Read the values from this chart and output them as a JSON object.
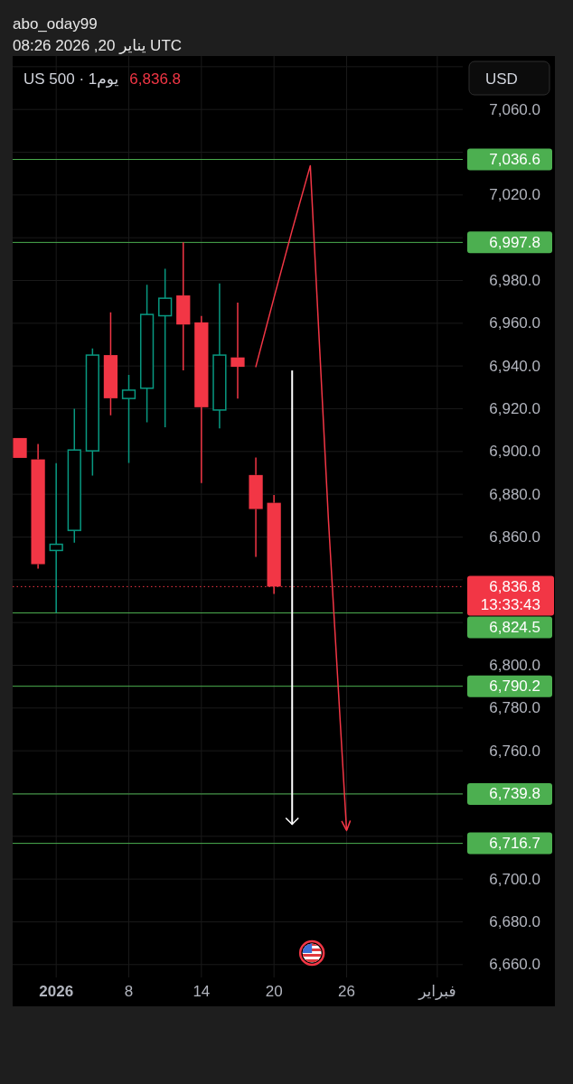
{
  "chart_data": {
    "type": "candlestick",
    "title": "US 500 · 1يوم",
    "subtitle": "abo_oday99",
    "annotations": [
      "6,836.8",
      "USD",
      "يناير 20, 2026 08:26 UTC"
    ],
    "categories": [
      null,
      null,
      "2026",
      null,
      null,
      null,
      "8",
      null,
      null,
      null,
      "14",
      null,
      null,
      null,
      "20",
      null,
      null,
      null,
      "26",
      null,
      null,
      null,
      null,
      "فبراير",
      null
    ],
    "ohlc": [
      [
        6906.3,
        6906.3,
        6897.0,
        6897.0
      ],
      [
        6896.3,
        6903.5,
        6845.2,
        6847.3
      ],
      [
        6853.7,
        6894.5,
        6824.5,
        6856.6
      ],
      [
        6863.1,
        6920.0,
        6857.3,
        6900.7
      ],
      [
        6900.3,
        6948.2,
        6888.7,
        6945.1
      ],
      [
        6945.1,
        6965.1,
        6916.9,
        6924.9
      ],
      [
        6924.8,
        6935.8,
        6894.6,
        6928.7
      ],
      [
        6929.6,
        6978.0,
        6913.7,
        6964.1
      ],
      [
        6963.5,
        6985.5,
        6911.3,
        6971.7
      ],
      [
        6973.0,
        6997.8,
        6938.0,
        6959.4
      ],
      [
        6960.4,
        6963.4,
        6885.2,
        6920.7
      ],
      [
        6919.4,
        6978.6,
        6910.8,
        6945.1
      ],
      [
        6944.0,
        6969.6,
        6924.8,
        6939.6
      ],
      [
        6889.0,
        6897.2,
        6850.7,
        6873.1
      ],
      [
        6876.0,
        6879.6,
        6833.4,
        6836.8
      ],
      null,
      null,
      null,
      null,
      null,
      null,
      null,
      null,
      null,
      null
    ],
    "colors": [
      "#f23645",
      "#f23645",
      "#089981",
      "#089981",
      "#089981",
      "#f23645",
      "#089981",
      "#089981",
      "#089981",
      "#f23645",
      "#f23645",
      "#089981",
      "#f23645",
      "#f23645",
      "#f23645",
      null,
      null,
      null,
      null,
      null,
      null,
      null,
      null,
      null,
      null
    ],
    "series": [
      {
        "type": "line",
        "color": "#f23645",
        "values": [
          null,
          null,
          null,
          null,
          null,
          null,
          null,
          null,
          null,
          null,
          null,
          null,
          null,
          6939.7,
          6971.9,
          7003.5,
          7033.7,
          6868.0,
          6722.7,
          null,
          null,
          null,
          null,
          null,
          null
        ]
      },
      {
        "type": "bar",
        "color": "#ffffff",
        "base": [
          null,
          null,
          null,
          null,
          null,
          null,
          null,
          null,
          null,
          null,
          null,
          null,
          null,
          null,
          null,
          6937.9,
          null,
          null,
          null,
          null,
          null,
          null,
          null,
          null,
          null
        ],
        "values": [
          null,
          null,
          null,
          null,
          null,
          null,
          null,
          null,
          null,
          null,
          null,
          null,
          null,
          null,
          null,
          -212.3,
          null,
          null,
          null,
          null,
          null,
          null,
          null,
          null,
          null
        ]
      }
    ],
    "ylim": [
      6654,
      7085
    ],
    "yticks": [
      {
        "value": 7080,
        "label": null
      },
      {
        "value": 7060,
        "label": "7,060.0"
      },
      {
        "value": 7040,
        "label": null
      },
      {
        "value": 7020,
        "label": "7,020.0"
      },
      {
        "value": 7000,
        "label": null
      },
      {
        "value": 6980,
        "label": "6,980.0"
      },
      {
        "value": 6960,
        "label": "6,960.0"
      },
      {
        "value": 6940,
        "label": "6,940.0"
      },
      {
        "value": 6920,
        "label": "6,920.0"
      },
      {
        "value": 6900,
        "label": "6,900.0"
      },
      {
        "value": 6880,
        "label": "6,880.0"
      },
      {
        "value": 6860,
        "label": "6,860.0"
      },
      {
        "value": 6840,
        "label": null
      },
      {
        "value": 6820,
        "label": null
      },
      {
        "value": 6800,
        "label": "6,800.0"
      },
      {
        "value": 6780,
        "label": "6,780.0"
      },
      {
        "value": 6760,
        "label": "6,760.0"
      },
      {
        "value": 6740,
        "label": null
      },
      {
        "value": 6720,
        "label": null
      },
      {
        "value": 6700,
        "label": "6,700.0"
      },
      {
        "value": 6680,
        "label": "6,680.0"
      },
      {
        "value": 6660,
        "label": "6,660.0"
      }
    ],
    "ref_lines": [
      {
        "axis": "y",
        "value": 7036.6,
        "label": "7,036.6",
        "color": "#4caf50"
      },
      {
        "axis": "y",
        "value": 6997.8,
        "label": "6,997.8",
        "color": "#4caf50"
      },
      {
        "axis": "y",
        "value": 6836.8,
        "label": "6,836.8\n13:33:43",
        "color": "#f23645",
        "line_style": "dotted"
      },
      {
        "axis": "y",
        "value": 6824.5,
        "label": "6,824.5",
        "color": "#4caf50"
      },
      {
        "axis": "y",
        "value": 6790.2,
        "label": "6,790.2",
        "color": "#4caf50"
      },
      {
        "axis": "y",
        "value": 6739.8,
        "label": "6,739.8",
        "color": "#4caf50"
      },
      {
        "axis": "y",
        "value": 6716.7,
        "label": "6,716.7",
        "color": "#4caf50"
      }
    ],
    "grid": true
  }
}
